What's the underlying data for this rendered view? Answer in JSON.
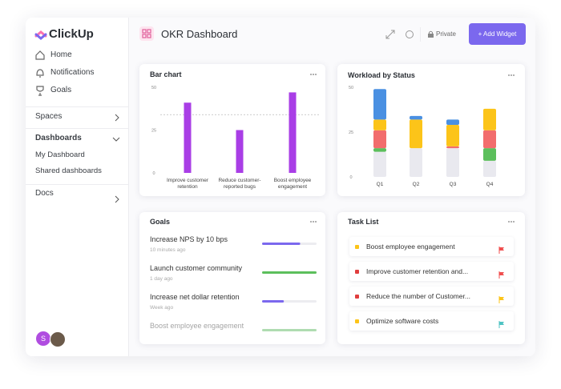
{
  "sidebar": {
    "logo": "ClickUp",
    "nav": [
      "Home",
      "Notifications",
      "Goals"
    ],
    "sections": [
      "Spaces",
      "Dashboards",
      "Docs"
    ],
    "dashboards": [
      "My Dashboard",
      "Shared dashboards"
    ],
    "avatar": "S"
  },
  "header": {
    "title": "OKR Dashboard",
    "privacy": "Private",
    "button": "+ Add Widget"
  },
  "chart_data": [
    {
      "type": "bar",
      "title": "Bar chart",
      "categories": [
        "Improve customer retention",
        "Reduce customer-reported bugs",
        "Boost employee engagement"
      ],
      "values": [
        41,
        25,
        47
      ],
      "color": "#a93ee6",
      "reference_line": 34,
      "ylim": [
        0,
        50
      ],
      "yticks": [
        0,
        25,
        50
      ]
    },
    {
      "type": "stacked_bar",
      "title": "Workload by Status",
      "categories": [
        "Q1",
        "Q2",
        "Q3",
        "Q4"
      ],
      "series": [
        {
          "color": "#e9e9ef",
          "values": [
            14,
            16,
            16,
            9
          ]
        },
        {
          "color": "#5cbf5c",
          "values": [
            2,
            0,
            0,
            7
          ]
        },
        {
          "color": "#f26d6d",
          "values": [
            10,
            0,
            1,
            10
          ]
        },
        {
          "color": "#fcc419",
          "values": [
            6,
            16,
            12,
            12
          ]
        },
        {
          "color": "#4a90e2",
          "values": [
            17,
            2,
            3,
            0
          ]
        }
      ],
      "ylim": [
        0,
        50
      ],
      "yticks": [
        0,
        25,
        50
      ]
    }
  ],
  "goals": {
    "title": "Goals",
    "progress_lim": [
      0,
      100
    ],
    "items": [
      {
        "name": "Increase NPS by 10 bps",
        "time": "10 minutes ago",
        "progress": 70,
        "color": "#7b68ee"
      },
      {
        "name": "Launch customer community",
        "time": "1 day ago",
        "progress": 100,
        "color": "#5cbf5c"
      },
      {
        "name": "Increase net dollar retention",
        "time": "Week ago",
        "progress": 40,
        "color": "#7b68ee"
      },
      {
        "name": "Boost employee engagement",
        "progress": 100,
        "color": "#5cbf5c"
      }
    ]
  },
  "task_list": {
    "title": "Task List",
    "items": [
      {
        "name": "Boost employee engagement",
        "status_color": "#fcc419",
        "flag_color": "#f04e4e"
      },
      {
        "name": "Improve customer retention and...",
        "status_color": "#e03e3e",
        "flag_color": "#f04e4e"
      },
      {
        "name": "Reduce the number of Customer...",
        "status_color": "#e03e3e",
        "flag_color": "#fcc419"
      },
      {
        "name": "Optimize software costs",
        "status_color": "#fcc419",
        "flag_color": "#4fc3c3"
      }
    ]
  }
}
